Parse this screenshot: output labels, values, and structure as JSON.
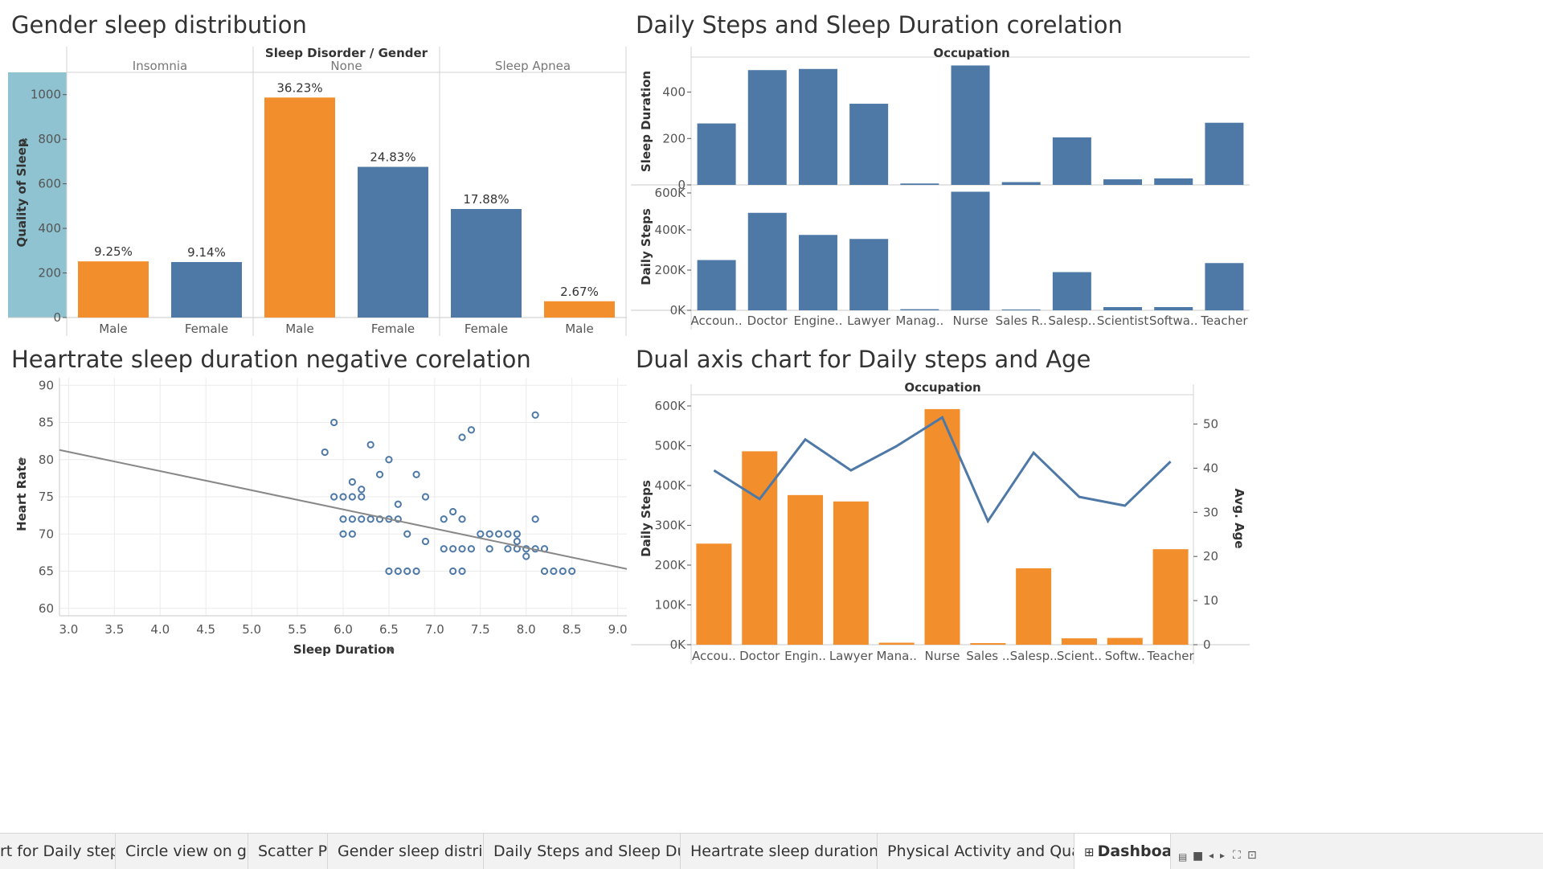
{
  "panels": {
    "p1": {
      "title": "Gender sleep distribution",
      "header": "Sleep Disorder  /  Gender",
      "ylabel": "Quality of Sleep",
      "ytick_values": [
        0,
        200,
        400,
        600,
        800,
        1000
      ],
      "ytick_labels": [
        "0",
        "200",
        "400",
        "600",
        "800",
        "1000"
      ]
    },
    "p2": {
      "title": "Daily Steps and Sleep Duration corelation",
      "header": "Occupation",
      "ylabel_top": "Sleep Duration",
      "ylabel_bottom": "Daily Steps",
      "top_ticks": [
        0,
        200,
        400
      ],
      "top_tick_labels": [
        "0",
        "200",
        "400"
      ],
      "bottom_ticks": [
        0,
        200000,
        400000,
        600000
      ],
      "bottom_tick_labels": [
        "0K",
        "200K",
        "400K",
        "600K"
      ]
    },
    "p3": {
      "title": "Heartrate sleep duration negative corelation",
      "xlabel": "Sleep Duration",
      "ylabel": "Heart Rate",
      "xticks": [
        3.0,
        3.5,
        4.0,
        4.5,
        5.0,
        5.5,
        6.0,
        6.5,
        7.0,
        7.5,
        8.0,
        8.5,
        9.0
      ],
      "xtick_labels": [
        "3.0",
        "3.5",
        "4.0",
        "4.5",
        "5.0",
        "5.5",
        "6.0",
        "6.5",
        "7.0",
        "7.5",
        "8.0",
        "8.5",
        "9.0"
      ],
      "yticks": [
        60,
        65,
        70,
        75,
        80,
        85,
        90
      ],
      "ytick_labels": [
        "60",
        "65",
        "70",
        "75",
        "80",
        "85",
        "90"
      ]
    },
    "p4": {
      "title": "Dual axis chart for Daily steps and Age",
      "header": "Occupation",
      "ylabel_left": "Daily Steps",
      "ylabel_right": "Avg. Age",
      "left_ticks": [
        0,
        100000,
        200000,
        300000,
        400000,
        500000,
        600000
      ],
      "left_tick_labels": [
        "0K",
        "100K",
        "200K",
        "300K",
        "400K",
        "500K",
        "600K"
      ],
      "right_ticks": [
        0,
        10,
        20,
        30,
        40,
        50
      ],
      "right_tick_labels": [
        "0",
        "10",
        "20",
        "30",
        "40",
        "50"
      ]
    }
  },
  "tabs": [
    {
      "label": "rt for Daily steps an..."
    },
    {
      "label": "Circle view on gender"
    },
    {
      "label": "Scatter Plot"
    },
    {
      "label": "Gender sleep distribution"
    },
    {
      "label": "Daily Steps and Sleep Duration c..."
    },
    {
      "label": "Heartrate sleep duration negativ..."
    },
    {
      "label": "Physical Activity and Quality of ..."
    },
    {
      "label": "Dashboard"
    }
  ],
  "tab_icons": {
    "dashboard": "dashboard-grid-icon"
  },
  "colors": {
    "orange": "#f28e2b",
    "blue": "#4e79a7",
    "teal_highlight": "#8fc3d1",
    "trend": "#888888",
    "grid": "#ebebeb"
  },
  "chart_data": [
    {
      "type": "bar",
      "title": "Gender sleep distribution",
      "header": "Sleep Disorder  /  Gender",
      "ylabel": "Quality of Sleep",
      "ylim": [
        0,
        1100
      ],
      "groups": [
        "Insomnia",
        "None",
        "Sleep Apnea"
      ],
      "bars": [
        {
          "group": "Insomnia",
          "gender": "Male",
          "value": 252,
          "label": "9.25%",
          "color": "orange"
        },
        {
          "group": "Insomnia",
          "gender": "Female",
          "value": 249,
          "label": "9.14%",
          "color": "blue"
        },
        {
          "group": "None",
          "gender": "Male",
          "value": 987,
          "label": "36.23%",
          "color": "orange"
        },
        {
          "group": "None",
          "gender": "Female",
          "value": 676,
          "label": "24.83%",
          "color": "blue"
        },
        {
          "group": "Sleep Apnea",
          "gender": "Female",
          "value": 487,
          "label": "17.88%",
          "color": "blue"
        },
        {
          "group": "Sleep Apnea",
          "gender": "Male",
          "value": 73,
          "label": "2.67%",
          "color": "orange"
        }
      ]
    },
    {
      "type": "bar",
      "title": "Daily Steps and Sleep Duration corelation",
      "header": "Occupation",
      "categories": [
        "Accoun..",
        "Doctor",
        "Engine..",
        "Lawyer",
        "Manag..",
        "Nurse",
        "Sales R..",
        "Salesp..",
        "Scientist",
        "Softwa..",
        "Teacher"
      ],
      "series": [
        {
          "name": "Sleep Duration",
          "values": [
            265,
            495,
            500,
            350,
            6,
            515,
            12,
            205,
            24,
            28,
            268
          ],
          "ylim": [
            0,
            520
          ]
        },
        {
          "name": "Daily Steps",
          "values": [
            250000,
            485000,
            375000,
            355000,
            5500,
            590000,
            4000,
            190000,
            16000,
            16000,
            235000
          ],
          "ylim": [
            0,
            600000
          ]
        }
      ]
    },
    {
      "type": "scatter",
      "title": "Heartrate sleep duration negative corelation",
      "xlabel": "Sleep Duration",
      "ylabel": "Heart Rate",
      "xlim": [
        2.9,
        9.1
      ],
      "ylim": [
        59,
        91
      ],
      "points": [
        [
          5.9,
          85
        ],
        [
          5.8,
          81
        ],
        [
          5.9,
          75
        ],
        [
          6.0,
          75
        ],
        [
          6.1,
          75
        ],
        [
          6.2,
          75
        ],
        [
          6.1,
          77
        ],
        [
          6.2,
          76
        ],
        [
          6.3,
          82
        ],
        [
          6.4,
          78
        ],
        [
          6.5,
          80
        ],
        [
          6.0,
          72
        ],
        [
          6.1,
          72
        ],
        [
          6.2,
          72
        ],
        [
          6.3,
          72
        ],
        [
          6.4,
          72
        ],
        [
          6.5,
          72
        ],
        [
          6.6,
          72
        ],
        [
          6.0,
          70
        ],
        [
          6.1,
          70
        ],
        [
          6.6,
          74
        ],
        [
          6.7,
          70
        ],
        [
          6.8,
          78
        ],
        [
          6.9,
          75
        ],
        [
          6.5,
          65
        ],
        [
          6.6,
          65
        ],
        [
          6.7,
          65
        ],
        [
          6.8,
          65
        ],
        [
          6.9,
          69
        ],
        [
          7.1,
          72
        ],
        [
          7.2,
          73
        ],
        [
          7.3,
          72
        ],
        [
          7.1,
          68
        ],
        [
          7.2,
          68
        ],
        [
          7.3,
          68
        ],
        [
          7.4,
          68
        ],
        [
          7.2,
          65
        ],
        [
          7.3,
          65
        ],
        [
          7.3,
          83
        ],
        [
          7.4,
          84
        ],
        [
          7.5,
          70
        ],
        [
          7.6,
          70
        ],
        [
          7.7,
          70
        ],
        [
          7.8,
          70
        ],
        [
          7.9,
          70
        ],
        [
          7.6,
          68
        ],
        [
          7.8,
          68
        ],
        [
          7.9,
          68
        ],
        [
          7.9,
          69
        ],
        [
          8.0,
          68
        ],
        [
          8.0,
          67
        ],
        [
          8.1,
          68
        ],
        [
          8.2,
          68
        ],
        [
          8.1,
          72
        ],
        [
          8.1,
          86
        ],
        [
          8.2,
          65
        ],
        [
          8.3,
          65
        ],
        [
          8.4,
          65
        ],
        [
          8.5,
          65
        ]
      ],
      "trend": {
        "x": [
          2.9,
          9.1
        ],
        "y": [
          81.3,
          65.3
        ]
      }
    },
    {
      "type": "bar",
      "title": "Dual axis chart for Daily steps and Age",
      "header": "Occupation",
      "categories": [
        "Accou..",
        "Doctor",
        "Engin..",
        "Lawyer",
        "Mana..",
        "Nurse",
        "Sales ..",
        "Salesp..",
        "Scient..",
        "Softw..",
        "Teacher"
      ],
      "series": [
        {
          "name": "Daily Steps",
          "type": "bar",
          "values": [
            254000,
            486000,
            376000,
            360000,
            5000,
            592000,
            4000,
            192000,
            16000,
            17000,
            240000
          ],
          "ylim": [
            0,
            610000
          ]
        },
        {
          "name": "Avg. Age",
          "type": "line",
          "values": [
            39.5,
            33,
            46.5,
            39.5,
            45,
            51.5,
            28,
            43.5,
            33.5,
            31.5,
            41.5
          ],
          "ylim": [
            0,
            55
          ]
        }
      ]
    }
  ]
}
